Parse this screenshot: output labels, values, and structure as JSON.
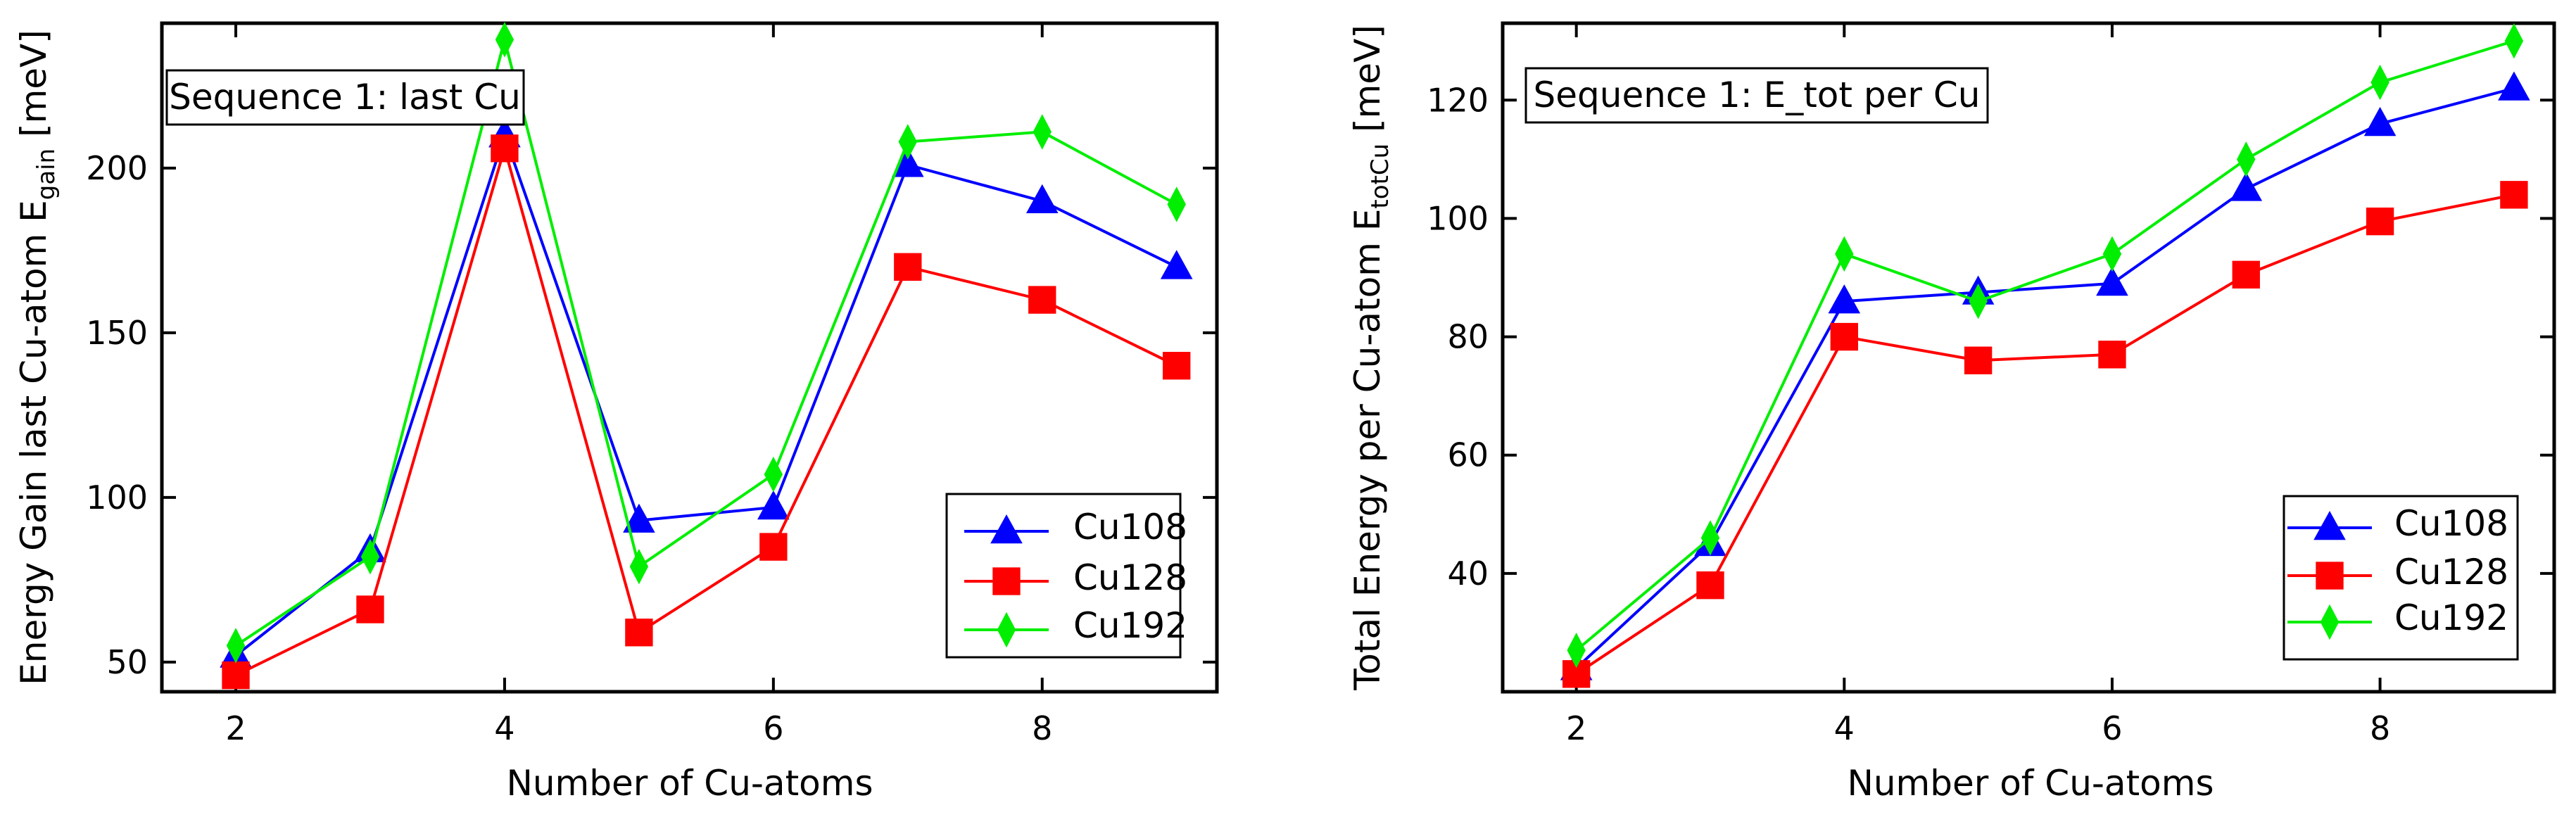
{
  "chart_data": [
    {
      "type": "line",
      "title": "Sequence 1: last Cu",
      "xlabel": "Number of Cu-atoms",
      "ylabel_main": "Energy Gain last Cu-atom E",
      "ylabel_sub": "gain",
      "ylabel_unit": " [meV]",
      "xlim": [
        1.45,
        9.3
      ],
      "ylim": [
        41,
        244
      ],
      "xticks": [
        2,
        4,
        6,
        8
      ],
      "xtick_labels": [
        "2",
        "4",
        "6",
        "8"
      ],
      "yticks": [
        50,
        100,
        150,
        200
      ],
      "ytick_labels": [
        "50",
        "100",
        "150",
        "200"
      ],
      "legend_position": "bottom-right",
      "x": [
        2,
        3,
        4,
        5,
        6,
        7,
        8,
        9
      ],
      "series": [
        {
          "name": "Cu108",
          "color": "#0000ff",
          "marker": "triangle",
          "values": [
            52,
            84,
            210,
            93,
            97,
            201,
            190,
            170
          ]
        },
        {
          "name": "Cu128",
          "color": "#ff0000",
          "marker": "square",
          "values": [
            46,
            66,
            206,
            59,
            85,
            170,
            160,
            140
          ]
        },
        {
          "name": "Cu192",
          "color": "#00ee00",
          "marker": "diamond",
          "values": [
            55,
            82,
            239,
            79,
            107,
            208,
            211,
            189
          ]
        }
      ]
    },
    {
      "type": "line",
      "title": "Sequence 1: E_tot per Cu",
      "xlabel": "Number of Cu-atoms",
      "ylabel_main": "Total Energy per Cu-atom E",
      "ylabel_sub": "totCu",
      "ylabel_unit": " [meV]",
      "xlim": [
        1.45,
        9.3
      ],
      "ylim": [
        20,
        133
      ],
      "xticks": [
        2,
        4,
        6,
        8
      ],
      "xtick_labels": [
        "2",
        "4",
        "6",
        "8"
      ],
      "yticks": [
        40,
        60,
        80,
        100,
        120
      ],
      "ytick_labels": [
        "40",
        "60",
        "80",
        "100",
        "120"
      ],
      "legend_position": "bottom-right",
      "x": [
        2,
        3,
        4,
        5,
        6,
        7,
        8,
        9
      ],
      "series": [
        {
          "name": "Cu108",
          "color": "#0000ff",
          "marker": "triangle",
          "values": [
            24,
            45,
            86,
            87.5,
            89,
            105,
            116,
            122
          ]
        },
        {
          "name": "Cu128",
          "color": "#ff0000",
          "marker": "square",
          "values": [
            23,
            38,
            80,
            76,
            77,
            90.5,
            99.5,
            104
          ]
        },
        {
          "name": "Cu192",
          "color": "#00ee00",
          "marker": "diamond",
          "values": [
            27,
            46,
            94,
            86,
            94,
            110,
            123,
            130
          ]
        }
      ]
    }
  ]
}
